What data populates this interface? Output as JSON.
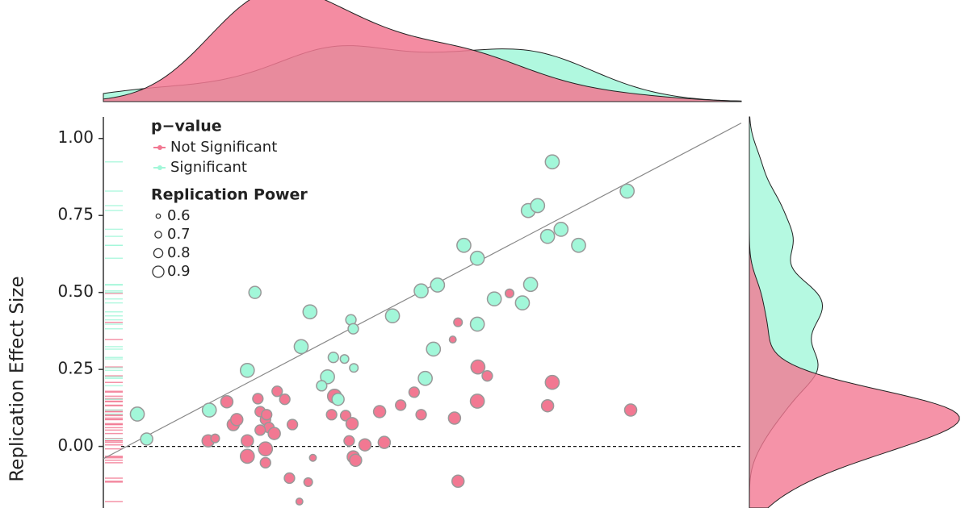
{
  "chart_data": {
    "type": "scatter",
    "ylabel": "Replication Effect Size",
    "xlim": [
      -0.04,
      1.05
    ],
    "ylim": [
      -0.2,
      1.07
    ],
    "yticks": [
      {
        "value": 0,
        "label": "0.00"
      },
      {
        "value": 0.25,
        "label": "0.25"
      },
      {
        "value": 0.5,
        "label": "0.50"
      },
      {
        "value": 0.75,
        "label": "0.75"
      },
      {
        "value": 1,
        "label": "1.00"
      }
    ],
    "hline": 0,
    "color_legend_title": "p−value",
    "size_legend": {
      "title": "Replication Power",
      "values": [
        0.6,
        0.7,
        0.8,
        0.9
      ]
    },
    "series": [
      {
        "name": "Not Significant",
        "color": "#f27892",
        "x": [
          0.171,
          0.139,
          0.151,
          0.182,
          0.188,
          0.206,
          0.206,
          0.224,
          0.228,
          0.237,
          0.239,
          0.243,
          0.228,
          0.252,
          0.237,
          0.237,
          0.257,
          0.27,
          0.283,
          0.278,
          0.318,
          0.31,
          0.295,
          0.35,
          0.355,
          0.374,
          0.385,
          0.38,
          0.387,
          0.391,
          0.407,
          0.44,
          0.432,
          0.468,
          0.491,
          0.503,
          0.56,
          0.557,
          0.566,
          0.566,
          0.599,
          0.6,
          0.616,
          0.654,
          0.727,
          0.719,
          0.861
        ],
        "y": [
          0.145,
          0.018,
          0.026,
          0.071,
          0.087,
          0.018,
          -0.032,
          0.155,
          0.113,
          0.087,
          0.103,
          0.061,
          0.053,
          0.042,
          -0.008,
          -0.053,
          0.179,
          0.153,
          0.071,
          -0.103,
          -0.037,
          -0.116,
          -0.179,
          0.103,
          0.163,
          0.1,
          0.074,
          0.018,
          -0.034,
          -0.045,
          0.005,
          0.013,
          0.113,
          0.134,
          0.176,
          0.103,
          0.092,
          0.347,
          0.403,
          -0.113,
          0.147,
          0.258,
          0.229,
          0.497,
          0.208,
          0.132,
          0.118
        ],
        "size": [
          0.75,
          0.75,
          0.65,
          0.75,
          0.75,
          0.75,
          0.8,
          0.7,
          0.7,
          0.7,
          0.7,
          0.7,
          0.7,
          0.75,
          0.8,
          0.7,
          0.7,
          0.7,
          0.7,
          0.7,
          0.6,
          0.65,
          0.6,
          0.7,
          0.8,
          0.7,
          0.75,
          0.7,
          0.75,
          0.75,
          0.75,
          0.75,
          0.75,
          0.7,
          0.7,
          0.7,
          0.75,
          0.6,
          0.65,
          0.75,
          0.8,
          0.8,
          0.7,
          0.65,
          0.8,
          0.75,
          0.75
        ]
      },
      {
        "name": "Significant",
        "color": "#a2f7d9",
        "x": [
          0.018,
          0.034,
          0.141,
          0.206,
          0.219,
          0.298,
          0.313,
          0.343,
          0.333,
          0.353,
          0.372,
          0.383,
          0.387,
          0.388,
          0.361,
          0.454,
          0.503,
          0.531,
          0.524,
          0.51,
          0.576,
          0.599,
          0.599,
          0.628,
          0.676,
          0.69,
          0.686,
          0.702,
          0.727,
          0.719,
          0.742,
          0.772,
          0.855
        ],
        "y": [
          0.105,
          0.024,
          0.118,
          0.247,
          0.5,
          0.324,
          0.437,
          0.226,
          0.197,
          0.289,
          0.284,
          0.411,
          0.382,
          0.255,
          0.153,
          0.424,
          0.505,
          0.524,
          0.316,
          0.221,
          0.653,
          0.611,
          0.397,
          0.479,
          0.466,
          0.526,
          0.766,
          0.782,
          0.924,
          0.682,
          0.705,
          0.653,
          0.829
        ],
        "size": [
          0.8,
          0.75,
          0.8,
          0.8,
          0.75,
          0.8,
          0.8,
          0.8,
          0.7,
          0.7,
          0.65,
          0.7,
          0.7,
          0.65,
          0.75,
          0.8,
          0.8,
          0.8,
          0.8,
          0.8,
          0.8,
          0.8,
          0.8,
          0.8,
          0.8,
          0.8,
          0.8,
          0.8,
          0.8,
          0.8,
          0.8,
          0.8,
          0.8
        ]
      }
    ]
  }
}
